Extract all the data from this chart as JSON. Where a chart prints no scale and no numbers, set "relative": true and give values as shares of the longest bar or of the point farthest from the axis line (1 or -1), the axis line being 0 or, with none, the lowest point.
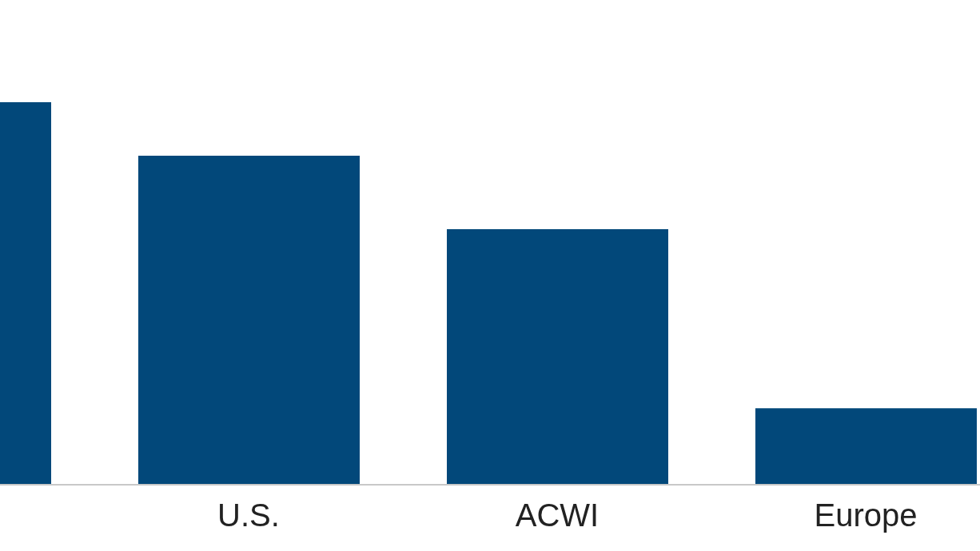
{
  "chart_data": {
    "type": "bar",
    "relative": true,
    "categories": [
      null,
      "U.S.",
      "ACWI",
      "Europe"
    ],
    "values": [
      1,
      0.86,
      0.668,
      0.2
    ],
    "color": "#02487a"
  }
}
